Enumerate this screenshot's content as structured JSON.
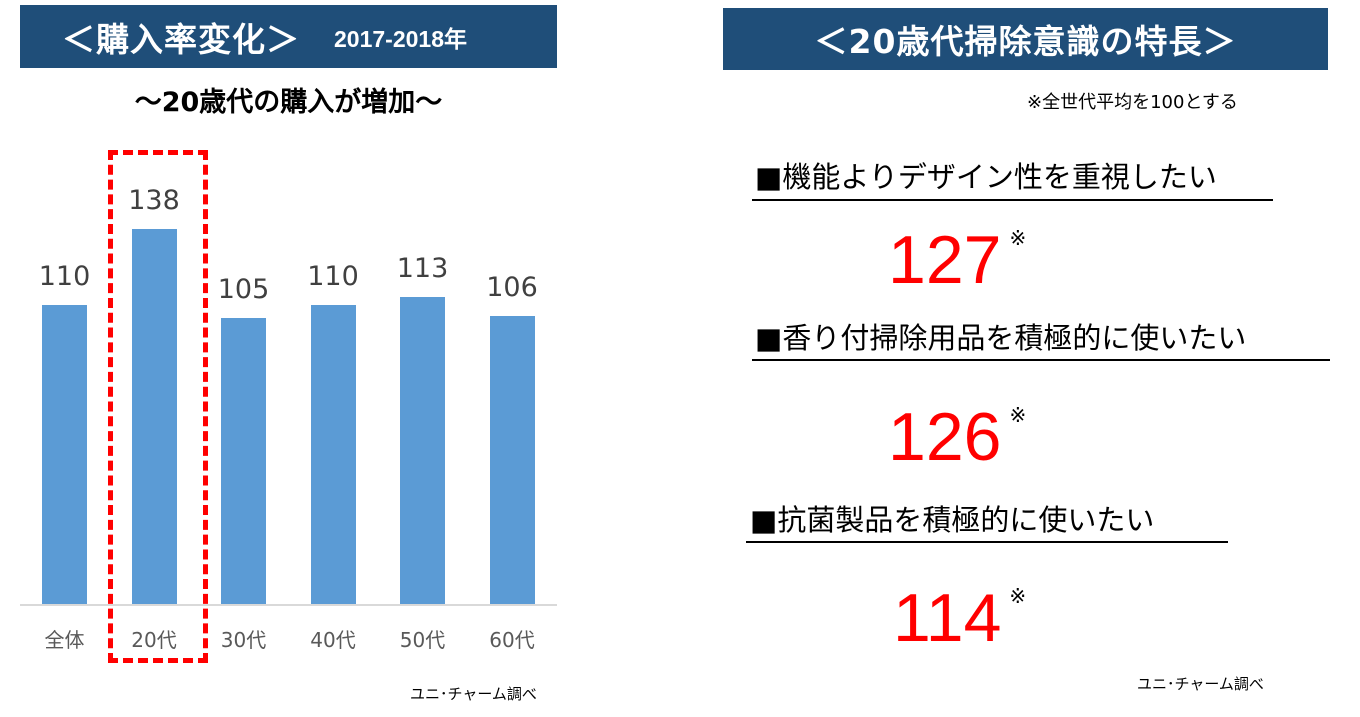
{
  "left_panel": {
    "banner_title": "＜購入率変化＞",
    "banner_subtitle": "2017-2018年",
    "subtitle": "～20歳代の購入が増加～",
    "source": "ユニ･チャーム調べ"
  },
  "right_panel": {
    "banner_title": "＜20歳代掃除意識の特長＞",
    "note": "※全世代平均を100とする",
    "features": [
      {
        "heading": "■機能よりデザイン性を重視したい",
        "value": "127",
        "mark": "※"
      },
      {
        "heading": "■香り付掃除用品を積極的に使いたい",
        "value": "126",
        "mark": "※"
      },
      {
        "heading": "■抗菌製品を積極的に使いたい",
        "value": "114",
        "mark": "※"
      }
    ],
    "source": "ユニ･チャーム調べ"
  },
  "colors": {
    "banner_bg": "#1f4e79",
    "bar": "#5b9bd5",
    "highlight": "#ff0000",
    "value_text": "#ff0000"
  },
  "chart_data": [
    {
      "type": "bar",
      "title": "＜購入率変化＞ 2017-2018年",
      "subtitle": "～20歳代の購入が増加～",
      "categories": [
        "全体",
        "20代",
        "30代",
        "40代",
        "50代",
        "60代"
      ],
      "values": [
        110,
        138,
        105,
        110,
        113,
        106
      ],
      "value_labels": [
        "110",
        "138",
        "105",
        "110",
        "113",
        "106"
      ],
      "xlabel": "",
      "ylabel": "",
      "grid": false,
      "legend": null,
      "highlighted_category": "20代",
      "annotations": [
        "ユニ･チャーム調べ"
      ]
    },
    {
      "type": "table",
      "title": "＜20歳代掃除意識の特長＞",
      "note": "※全世代平均を100とする",
      "categories": [
        "機能よりデザイン性を重視したい",
        "香り付掃除用品を積極的に使いたい",
        "抗菌製品を積極的に使いたい"
      ],
      "values": [
        127,
        126,
        114
      ],
      "annotations": [
        "ユニ･チャーム調べ"
      ]
    }
  ]
}
